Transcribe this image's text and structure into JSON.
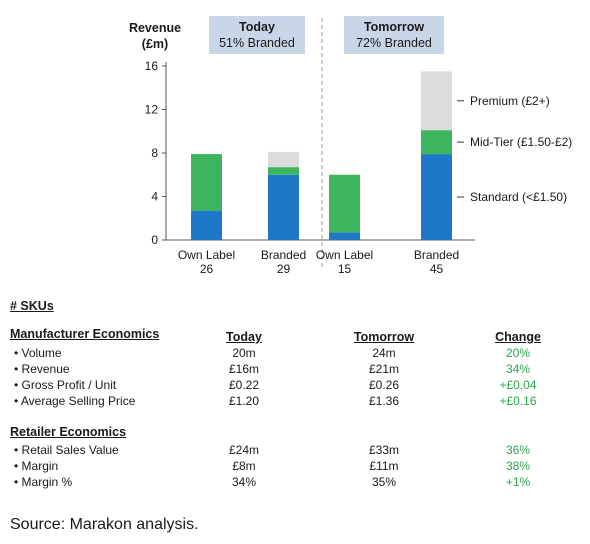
{
  "chart_data": {
    "type": "bar",
    "stacked": true,
    "ylabel": "Revenue (£m)",
    "ylim": [
      0,
      16
    ],
    "yticks": [
      0,
      4,
      8,
      12,
      16
    ],
    "categories": [
      "Own Label",
      "Branded",
      "Own Label",
      "Branded"
    ],
    "sku_counts": [
      "26",
      "29",
      "15",
      "45"
    ],
    "groups": [
      {
        "title": "Today",
        "subtitle": "51% Branded"
      },
      {
        "title": "Tomorrow",
        "subtitle": "72% Branded"
      }
    ],
    "series": [
      {
        "name": "Standard (<£1.50)",
        "color": "#1f77c8",
        "values": [
          2.7,
          6.0,
          0.7,
          7.9
        ]
      },
      {
        "name": "Mid-Tier (£1.50-£2)",
        "color": "#3cb55e",
        "values": [
          5.2,
          0.7,
          5.3,
          2.2
        ]
      },
      {
        "name": "Premium (£2+)",
        "color": "#dcdcdc",
        "values": [
          0.0,
          1.4,
          0.0,
          5.4
        ]
      }
    ]
  },
  "tables": {
    "skus_title": "# SKUs",
    "columns": [
      "Today",
      "Tomorrow",
      "Change"
    ],
    "manufacturer": {
      "title": "Manufacturer Economics",
      "rows": [
        {
          "label": "Volume",
          "today": "20m",
          "tomorrow": "24m",
          "change": "20%"
        },
        {
          "label": "Revenue",
          "today": "£16m",
          "tomorrow": "£21m",
          "change": "34%"
        },
        {
          "label": "Gross Profit / Unit",
          "today": "£0.22",
          "tomorrow": "£0.26",
          "change": "+£0.04"
        },
        {
          "label": "Average Selling Price",
          "today": "£1.20",
          "tomorrow": "£1.36",
          "change": "+£0.16"
        }
      ]
    },
    "retailer": {
      "title": "Retailer Economics",
      "rows": [
        {
          "label": "Retail Sales Value",
          "today": "£24m",
          "tomorrow": "£33m",
          "change": "36%"
        },
        {
          "label": "Margin",
          "today": "£8m",
          "tomorrow": "£11m",
          "change": "38%"
        },
        {
          "label": "Margin %",
          "today": "34%",
          "tomorrow": "35%",
          "change": "+1%"
        }
      ]
    }
  },
  "source": "Source: Marakon analysis."
}
